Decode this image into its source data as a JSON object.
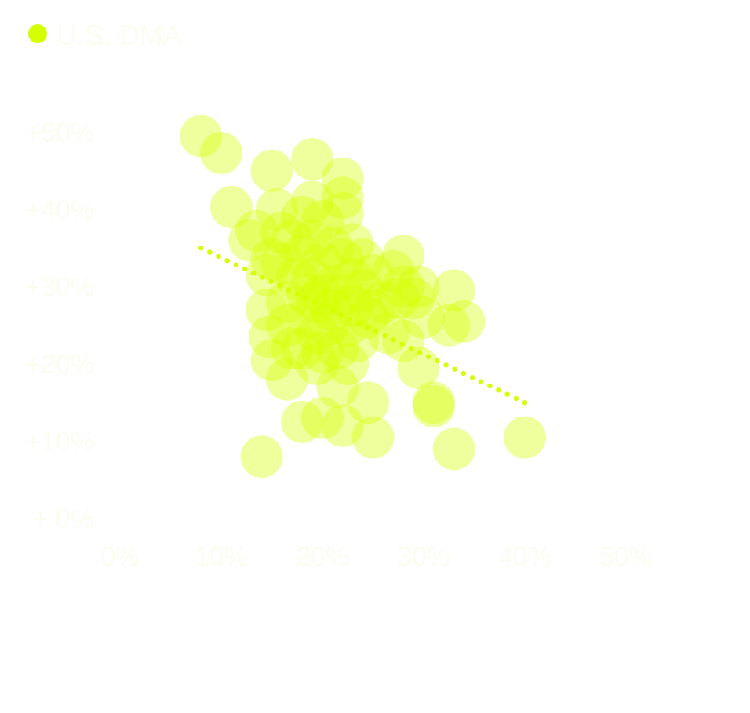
{
  "chart_data": {
    "type": "scatter",
    "title": "",
    "xlabel": "",
    "ylabel": "",
    "xlim": [
      0,
      50
    ],
    "ylim": [
      0,
      50
    ],
    "x_ticks": [
      "0%",
      "10%",
      "20%",
      "30%",
      "40%",
      "50%"
    ],
    "y_ticks": [
      "+ 0%",
      "+10%",
      "+20%",
      "+30%",
      "+40%",
      "+50%"
    ],
    "grid": false,
    "legend_position": "top-left",
    "series": [
      {
        "name": "U.S. DMA",
        "color": "#d4ff00",
        "points": [
          [
            8,
            49.5
          ],
          [
            10,
            47.3
          ],
          [
            11,
            40.3
          ],
          [
            12.8,
            36.0
          ],
          [
            13.5,
            37.2
          ],
          [
            15,
            45
          ],
          [
            15.5,
            40
          ],
          [
            15,
            33.5
          ],
          [
            14.5,
            31.5
          ],
          [
            14.5,
            27.0
          ],
          [
            14.8,
            23.5
          ],
          [
            15,
            20.5
          ],
          [
            16,
            37
          ],
          [
            16,
            33
          ],
          [
            17,
            36
          ],
          [
            17.5,
            31
          ],
          [
            16.5,
            28
          ],
          [
            16.5,
            25
          ],
          [
            16.5,
            18
          ],
          [
            17,
            22
          ],
          [
            18,
            39
          ],
          [
            18,
            34
          ],
          [
            18.5,
            29
          ],
          [
            18.5,
            26
          ],
          [
            18,
            22
          ],
          [
            18,
            12.5
          ],
          [
            19,
            46.5
          ],
          [
            19,
            41
          ],
          [
            19,
            36
          ],
          [
            19,
            31
          ],
          [
            19.5,
            28
          ],
          [
            19.5,
            24
          ],
          [
            19.5,
            20
          ],
          [
            20,
            38.5
          ],
          [
            20,
            33
          ],
          [
            20,
            29
          ],
          [
            20.5,
            25
          ],
          [
            20,
            21.5
          ],
          [
            20,
            13
          ],
          [
            21,
            35
          ],
          [
            21,
            30
          ],
          [
            21,
            27
          ],
          [
            21.5,
            22
          ],
          [
            21.5,
            17
          ],
          [
            22,
            44
          ],
          [
            22,
            41.5
          ],
          [
            22,
            39.5
          ],
          [
            22,
            33.5
          ],
          [
            22,
            29
          ],
          [
            22.5,
            25
          ],
          [
            22.5,
            20
          ],
          [
            22,
            12
          ],
          [
            23,
            35.5
          ],
          [
            23,
            31
          ],
          [
            23,
            27.5
          ],
          [
            23.5,
            23
          ],
          [
            24,
            33.5
          ],
          [
            24,
            29.5
          ],
          [
            24.5,
            26
          ],
          [
            24.5,
            15
          ],
          [
            25,
            31.5
          ],
          [
            25,
            27
          ],
          [
            25,
            10.5
          ],
          [
            26,
            28
          ],
          [
            26.5,
            24
          ],
          [
            27,
            32
          ],
          [
            27.5,
            28.5
          ],
          [
            28,
            34
          ],
          [
            28,
            30
          ],
          [
            28,
            23
          ],
          [
            29,
            28.5
          ],
          [
            29.5,
            19.5
          ],
          [
            29.5,
            30
          ],
          [
            30,
            26
          ],
          [
            31,
            15
          ],
          [
            31,
            14.5
          ],
          [
            32.5,
            25
          ],
          [
            33,
            29.5
          ],
          [
            33,
            9
          ],
          [
            34,
            25.5
          ],
          [
            40,
            10.5
          ],
          [
            14,
            8
          ]
        ]
      }
    ],
    "trend_line": {
      "style": "dotted",
      "from": [
        8,
        35
      ],
      "to": [
        40,
        15
      ]
    }
  }
}
